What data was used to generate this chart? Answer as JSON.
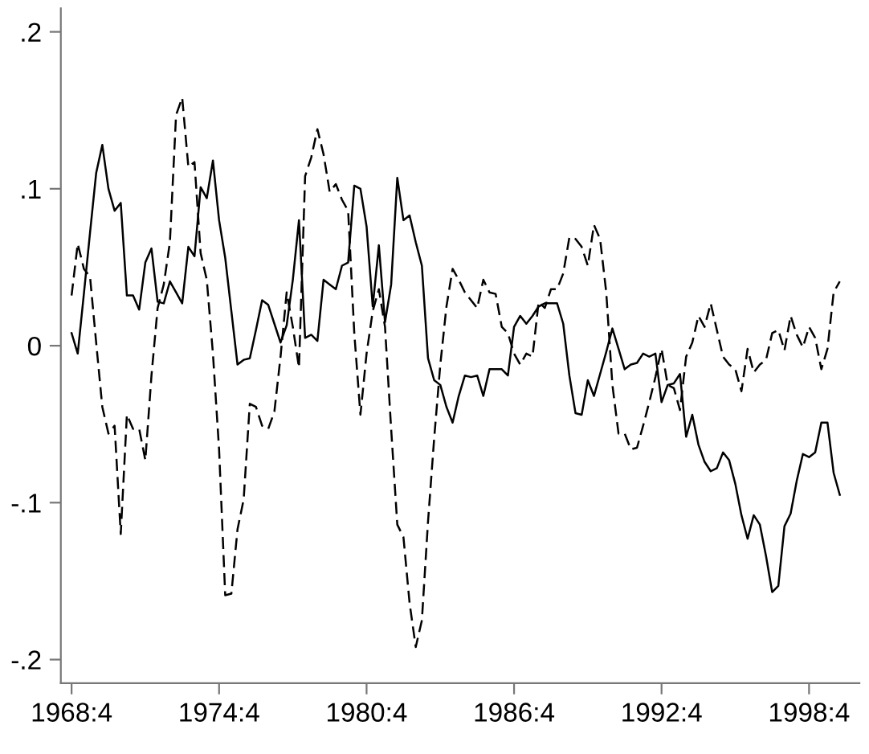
{
  "chart_data": {
    "type": "line",
    "ylim": [
      -0.215,
      0.215
    ],
    "categories": [
      "1968:4",
      null,
      null,
      null,
      null,
      null,
      null,
      null,
      null,
      null,
      null,
      null,
      null,
      null,
      null,
      null,
      null,
      null,
      null,
      null,
      null,
      null,
      null,
      null,
      "1974:4",
      null,
      null,
      null,
      null,
      null,
      null,
      null,
      null,
      null,
      null,
      null,
      null,
      null,
      null,
      null,
      null,
      null,
      null,
      null,
      null,
      null,
      null,
      null,
      "1980:4",
      null,
      null,
      null,
      null,
      null,
      null,
      null,
      null,
      null,
      null,
      null,
      null,
      null,
      null,
      null,
      null,
      null,
      null,
      null,
      null,
      null,
      null,
      null,
      "1986:4",
      null,
      null,
      null,
      null,
      null,
      null,
      null,
      null,
      null,
      null,
      null,
      null,
      null,
      null,
      null,
      null,
      null,
      null,
      null,
      null,
      null,
      null,
      null,
      "1992:4",
      null,
      null,
      null,
      null,
      null,
      null,
      null,
      null,
      null,
      null,
      null,
      null,
      null,
      null,
      null,
      null,
      null,
      null,
      null,
      null,
      null,
      null,
      null,
      "1998:4",
      null,
      null,
      null,
      null,
      null
    ],
    "yticks": [
      {
        "value": -0.2,
        "label": "-.2"
      },
      {
        "value": -0.1,
        "label": "-.1"
      },
      0,
      {
        "value": 0.1,
        "label": ".1"
      },
      {
        "value": 0.2,
        "label": ".2"
      }
    ],
    "series": [
      {
        "color": "#000000",
        "line_style": "solid",
        "values": [
          0.008,
          -0.005,
          0.033,
          0.072,
          0.11,
          0.128,
          0.1,
          0.086,
          0.091,
          0.032,
          0.032,
          0.023,
          0.053,
          0.062,
          0.028,
          0.027,
          0.041,
          0.034,
          0.027,
          0.063,
          0.057,
          0.101,
          0.094,
          0.118,
          0.08,
          0.056,
          0.022,
          -0.012,
          -0.009,
          -0.008,
          0.01,
          0.029,
          0.026,
          0.014,
          0.002,
          0.013,
          0.042,
          0.08,
          0.005,
          0.007,
          0.003,
          0.042,
          0.039,
          0.036,
          0.051,
          0.053,
          0.102,
          0.1,
          0.076,
          0.025,
          0.064,
          0.015,
          0.039,
          0.107,
          0.08,
          0.083,
          0.066,
          0.051,
          -0.008,
          -0.022,
          -0.025,
          -0.039,
          -0.049,
          -0.032,
          -0.019,
          -0.02,
          -0.019,
          -0.032,
          -0.015,
          -0.015,
          -0.015,
          -0.019,
          0.012,
          0.019,
          0.014,
          0.019,
          0.025,
          0.027,
          0.027,
          0.027,
          0.014,
          -0.019,
          -0.043,
          -0.044,
          -0.022,
          -0.032,
          -0.018,
          -0.004,
          0.011,
          -0.002,
          -0.015,
          -0.012,
          -0.011,
          -0.005,
          -0.007,
          -0.005,
          -0.036,
          -0.025,
          -0.024,
          -0.018,
          -0.058,
          -0.044,
          -0.063,
          -0.074,
          -0.08,
          -0.078,
          -0.068,
          -0.073,
          -0.088,
          -0.108,
          -0.123,
          -0.108,
          -0.114,
          -0.134,
          -0.157,
          -0.153,
          -0.115,
          -0.107,
          -0.086,
          -0.069,
          -0.071,
          -0.068,
          -0.049,
          -0.049,
          -0.081,
          -0.095
        ]
      },
      {
        "color": "#000000",
        "line_style": "dashed",
        "values": [
          0.032,
          0.065,
          0.049,
          0.044,
          0.002,
          -0.039,
          -0.056,
          -0.051,
          -0.12,
          -0.044,
          -0.053,
          -0.053,
          -0.073,
          -0.019,
          0.024,
          0.039,
          0.066,
          0.147,
          0.158,
          0.114,
          0.117,
          0.059,
          0.042,
          -0.005,
          -0.066,
          -0.159,
          -0.158,
          -0.117,
          -0.098,
          -0.037,
          -0.039,
          -0.051,
          -0.053,
          -0.042,
          -0.007,
          0.034,
          0.012,
          -0.014,
          0.108,
          0.12,
          0.138,
          0.122,
          0.098,
          0.103,
          0.093,
          0.086,
          0.008,
          -0.044,
          -0.005,
          0.022,
          0.036,
          0.012,
          -0.053,
          -0.114,
          -0.122,
          -0.164,
          -0.192,
          -0.175,
          -0.112,
          -0.059,
          -0.012,
          0.025,
          0.049,
          0.042,
          0.034,
          0.029,
          0.024,
          0.042,
          0.034,
          0.033,
          0.012,
          0.008,
          -0.005,
          -0.012,
          -0.005,
          -0.007,
          0.028,
          0.024,
          0.036,
          0.036,
          0.046,
          0.069,
          0.068,
          0.063,
          0.051,
          0.077,
          0.068,
          0.034,
          -0.025,
          -0.056,
          -0.056,
          -0.066,
          -0.065,
          -0.051,
          -0.036,
          -0.02,
          -0.002,
          -0.025,
          -0.027,
          -0.041,
          -0.007,
          0.002,
          0.019,
          0.012,
          0.027,
          0.01,
          -0.007,
          -0.012,
          -0.015,
          -0.029,
          -0.002,
          -0.017,
          -0.012,
          -0.009,
          0.008,
          0.01,
          -0.003,
          0.019,
          0.007,
          -0.001,
          0.012,
          0.005,
          -0.015,
          -0.002,
          0.034,
          0.041
        ]
      }
    ]
  }
}
